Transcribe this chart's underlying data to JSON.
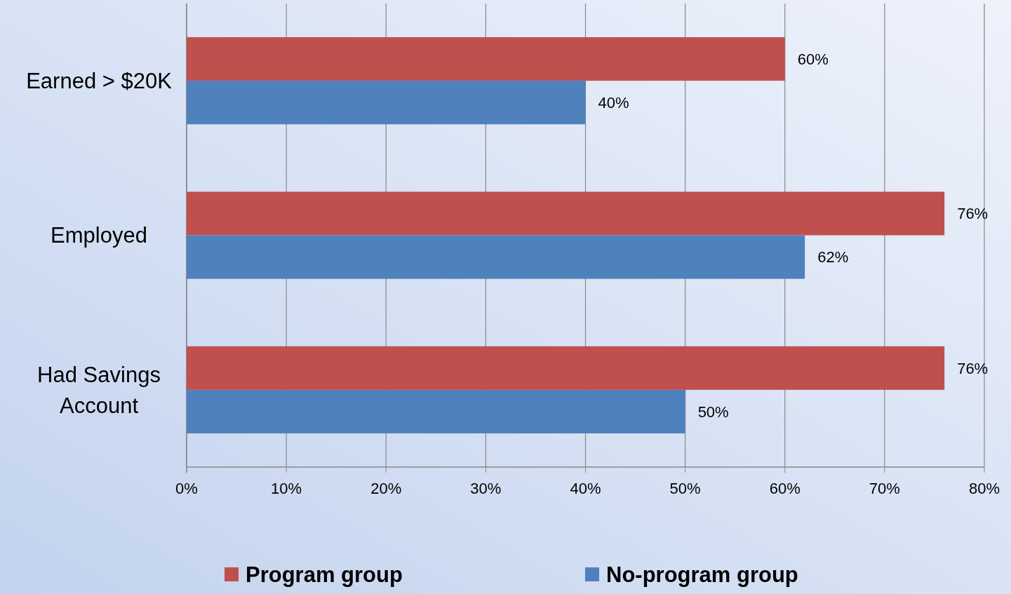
{
  "chart_data": {
    "type": "bar",
    "orientation": "horizontal",
    "categories": [
      "Earned > $20K",
      "Employed",
      "Had Savings Account"
    ],
    "series": [
      {
        "name": "Program group",
        "color": "#c0504d",
        "values": [
          60,
          76,
          76
        ],
        "value_labels": [
          "60%",
          "76%",
          "76%"
        ]
      },
      {
        "name": "No-program group",
        "color": "#4f81bd",
        "values": [
          40,
          62,
          50
        ],
        "value_labels": [
          "40%",
          "62%",
          "50%"
        ]
      }
    ],
    "xlim": [
      0,
      80
    ],
    "xticks": [
      {
        "value": 0,
        "label": "0%"
      },
      {
        "value": 10,
        "label": "10%"
      },
      {
        "value": 20,
        "label": "20%"
      },
      {
        "value": 30,
        "label": "30%"
      },
      {
        "value": 40,
        "label": "40%"
      },
      {
        "value": 50,
        "label": "50%"
      },
      {
        "value": 60,
        "label": "60%"
      },
      {
        "value": 70,
        "label": "70%"
      },
      {
        "value": 80,
        "label": "80%"
      }
    ],
    "grid": "x",
    "legend": "bottom"
  }
}
